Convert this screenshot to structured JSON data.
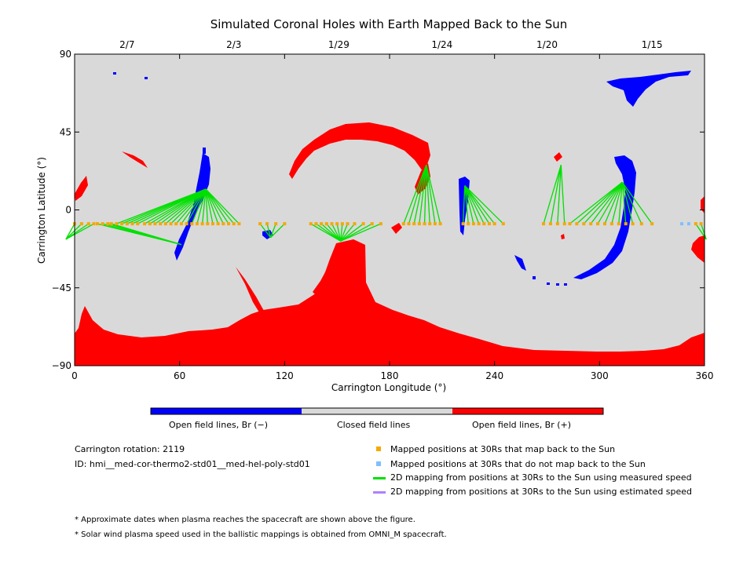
{
  "chart_data": {
    "type": "map",
    "title": "Simulated Coronal Holes with Earth Mapped Back to the Sun",
    "xlabel": "Carrington Longitude (°)",
    "ylabel": "Carrington Latitude (°)",
    "xlim": [
      0,
      360
    ],
    "ylim": [
      -90,
      90
    ],
    "x_ticks": [
      0,
      60,
      120,
      180,
      240,
      300,
      360
    ],
    "y_ticks": [
      90,
      45,
      0,
      -45,
      -90
    ],
    "y_tick_labels": [
      "90",
      "45",
      "0",
      "−45",
      "−90"
    ],
    "top_axis_dates": [
      {
        "label": "2/7",
        "lon": 30
      },
      {
        "label": "2/3",
        "lon": 91
      },
      {
        "label": "1/29",
        "lon": 151
      },
      {
        "label": "1/24",
        "lon": 210
      },
      {
        "label": "1/20",
        "lon": 270
      },
      {
        "label": "1/15",
        "lon": 330
      }
    ],
    "colors": {
      "closed": "#d9d9d9",
      "open_negative": "#0000ff",
      "open_positive": "#ff0000",
      "mapped_back": "#f5a800",
      "not_mapped": "#7fbfff",
      "measured_speed": "#00e000",
      "estimated_speed": "#b080ff"
    },
    "colorbar": [
      {
        "label": "Open field lines, Br (−)",
        "color": "#0000ff"
      },
      {
        "label": "Closed field lines",
        "color": "#d9d9d9"
      },
      {
        "label": "Open field lines, Br (+)",
        "color": "#ff0000"
      }
    ],
    "mapping_groups": [
      {
        "foot": [
          -5,
          -17
        ],
        "points": [
          0,
          4,
          8,
          11
        ]
      },
      {
        "foot": [
          61,
          -20
        ],
        "points": [
          13,
          16,
          19,
          21
        ]
      },
      {
        "foot": [
          75,
          12
        ],
        "points": [
          24,
          27,
          30,
          33,
          36,
          40,
          43,
          46,
          49,
          52,
          55,
          58,
          61,
          64,
          67,
          70,
          73,
          76,
          79,
          82,
          85,
          88,
          91,
          94
        ]
      },
      {
        "foot": [
          112,
          -16
        ],
        "points": [
          106,
          110,
          115,
          120
        ]
      },
      {
        "foot": [
          152,
          -18
        ],
        "points": [
          135,
          138,
          141,
          144,
          147,
          150,
          153,
          156,
          160,
          165,
          170,
          175
        ]
      },
      {
        "foot": [
          201,
          26
        ],
        "points": [
          188,
          191,
          194,
          197,
          200,
          203,
          206,
          209
        ]
      },
      {
        "foot": [
          223,
          14
        ],
        "points": [
          222,
          225,
          228,
          231,
          234,
          237,
          240,
          245
        ]
      },
      {
        "foot": [
          278,
          26
        ],
        "points": [
          268,
          272,
          276,
          280
        ]
      },
      {
        "foot": [
          313,
          16
        ],
        "points": [
          283,
          287,
          291,
          295,
          299,
          303,
          307,
          311,
          315,
          319,
          324,
          330
        ]
      },
      {
        "foot": [
          361,
          -17
        ],
        "points": [
          355,
          358
        ]
      }
    ],
    "unmapped_points": [
      347,
      351
    ]
  },
  "legend": {
    "items": [
      {
        "label": "Mapped positions at 30Rs that map back to the Sun",
        "symbol": "square",
        "color": "#f5a800"
      },
      {
        "label": "Mapped positions at 30Rs that do not map back to the Sun",
        "symbol": "square",
        "color": "#7fbfff"
      },
      {
        "label": "2D mapping from positions at 30Rs to the Sun using measured speed",
        "symbol": "line",
        "color": "#00e000"
      },
      {
        "label": "2D mapping from positions at 30Rs to the Sun using estimated speed",
        "symbol": "line",
        "color": "#b080ff"
      }
    ]
  },
  "info": {
    "rotation": "Carrington rotation: 2119",
    "id": "ID: hmi__med-cor-thermo2-std01__med-hel-poly-std01"
  },
  "notes": {
    "note1": "* Approximate dates when plasma reaches the spacecraft are shown above the figure.",
    "note2": "* Solar wind plasma speed used in the ballistic mappings is obtained from OMNI_M spacecraft."
  }
}
